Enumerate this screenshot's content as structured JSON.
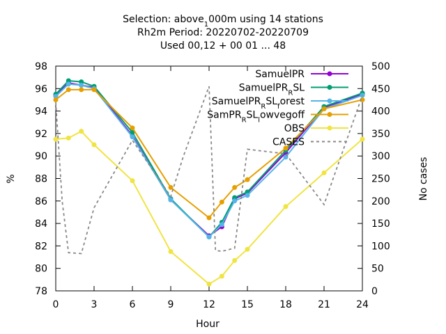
{
  "chart_data": {
    "type": "line",
    "title_lines": [
      {
        "pre": "Selection: above",
        "sub": "1",
        "post": "000m using    14 stations"
      },
      {
        "pre": "Rh2m   Period: 20220702-20220709",
        "sub": "",
        "post": ""
      },
      {
        "pre": "Used  00,12  + 00 01 ... 48",
        "sub": "",
        "post": ""
      }
    ],
    "xlabel": "Hour",
    "ylabel": "%",
    "y2label": "No cases",
    "xlim": [
      0,
      24
    ],
    "ylim": [
      78,
      98
    ],
    "y2lim": [
      0,
      500
    ],
    "xticks": [
      0,
      3,
      6,
      9,
      12,
      15,
      18,
      21,
      24
    ],
    "yticks": [
      78,
      80,
      82,
      84,
      86,
      88,
      90,
      92,
      94,
      96,
      98
    ],
    "y2ticks": [
      0,
      50,
      100,
      150,
      200,
      250,
      300,
      350,
      400,
      450,
      500
    ],
    "grid": false,
    "legend_position": "top-right",
    "x": [
      0,
      1,
      2,
      3,
      6,
      9,
      12,
      13,
      14,
      15,
      18,
      21,
      24
    ],
    "series": [
      {
        "name": "SamuelPR",
        "legend": {
          "pre": "SamuelPR",
          "sub": "",
          "post": ""
        },
        "color": "#9400d3",
        "style": "solid",
        "marker": true,
        "values": [
          95.4,
          96.5,
          96.3,
          96.1,
          91.8,
          86.1,
          82.9,
          83.7,
          86.2,
          86.7,
          90.3,
          94.3,
          95.5
        ]
      },
      {
        "name": "SamuelPRRSL",
        "legend": {
          "pre": "SamuelPR",
          "sub": "R",
          "post": "SL"
        },
        "color": "#009e73",
        "style": "solid",
        "marker": true,
        "values": [
          95.5,
          96.7,
          96.6,
          96.2,
          92.1,
          86.2,
          82.8,
          84.1,
          86.3,
          86.8,
          90.5,
          94.4,
          95.6
        ]
      },
      {
        "name": "SamuelPRRSLforest",
        "legend": {
          "pre": "SamuelPR",
          "sub": "R",
          "post": "SL",
          "sub2": "f",
          "post2": "orest"
        },
        "color": "#56b4e9",
        "style": "solid",
        "marker": true,
        "values": [
          95.3,
          96.4,
          96.3,
          96.0,
          91.7,
          86.1,
          82.8,
          83.9,
          86.0,
          86.5,
          89.9,
          94.2,
          95.4
        ]
      },
      {
        "name": "SamPRRSLlowvegoff",
        "legend": {
          "pre": "SamPR",
          "sub": "R",
          "post": "SL",
          "sub2": "l",
          "post2": "owvegoff"
        },
        "color": "#e69f00",
        "style": "solid",
        "marker": true,
        "values": [
          95.0,
          95.9,
          95.9,
          95.9,
          92.5,
          87.2,
          84.5,
          85.9,
          87.2,
          87.9,
          90.7,
          94.2,
          95.0
        ]
      },
      {
        "name": "OBS",
        "legend": {
          "pre": "OBS",
          "sub": "",
          "post": ""
        },
        "color": "#f0e442",
        "style": "solid",
        "marker": true,
        "values": [
          91.5,
          91.6,
          92.2,
          91.0,
          87.8,
          81.5,
          78.6,
          79.3,
          80.7,
          81.7,
          85.5,
          88.5,
          91.5
        ]
      },
      {
        "name": "CASES",
        "legend": {
          "pre": "CASES",
          "sub": "",
          "post": ""
        },
        "color": "#888888",
        "style": "dashed",
        "marker": false,
        "axis": "y2",
        "x": [
          0,
          0.5,
          1,
          2,
          3,
          6,
          9,
          10,
          12,
          12.5,
          13,
          14,
          15,
          18,
          21,
          24
        ],
        "values": [
          420,
          200,
          85,
          83,
          185,
          335,
          210,
          300,
          455,
          90,
          88,
          95,
          315,
          305,
          192,
          435
        ]
      }
    ]
  }
}
